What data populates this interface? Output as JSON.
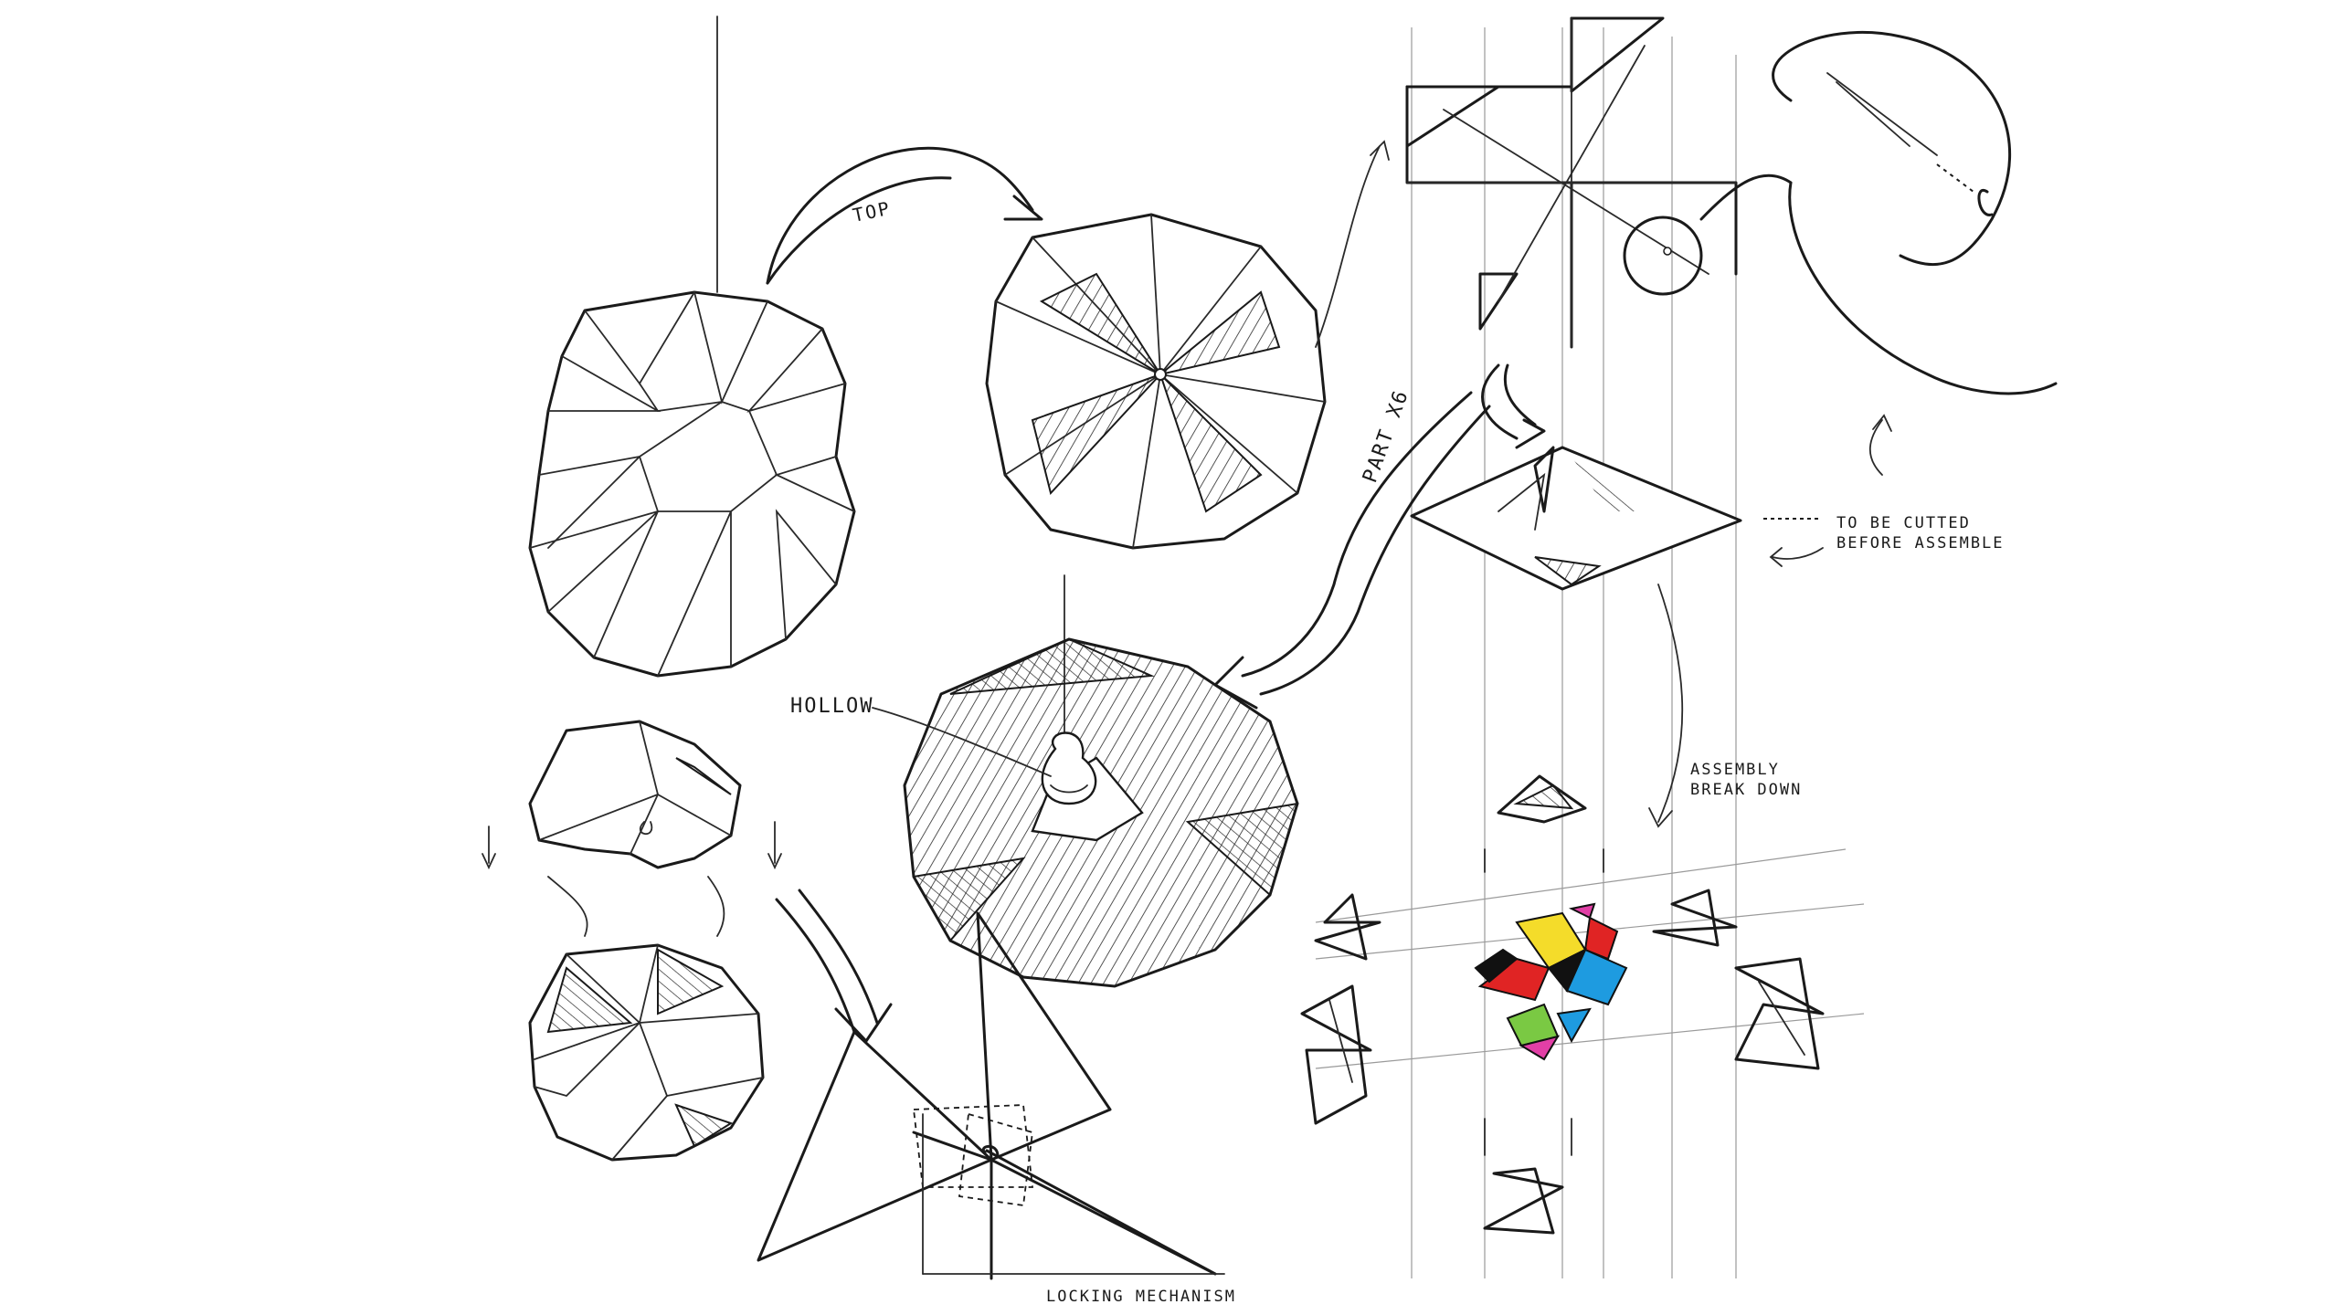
{
  "labels": {
    "top": "TOP",
    "part": "PART X6",
    "cut_line_1": "TO BE CUTTED",
    "cut_line_2": "BEFORE ASSEMBLE",
    "hollow": "HOLLOW",
    "assembly_1": "ASSEMBLY",
    "assembly_2": "BREAK DOWN",
    "locking": "LOCKING MECHANISM"
  },
  "colors": {
    "lamp_fill": "#f7d89a",
    "lamp_shade": "#e59a2a",
    "ink": "#1a1a1a",
    "piece_red": "#e02424",
    "piece_yellow": "#f4dc2a",
    "piece_blue": "#1e9be0",
    "piece_green": "#7ac943",
    "piece_pink": "#e23fa6",
    "piece_black": "#111111"
  }
}
